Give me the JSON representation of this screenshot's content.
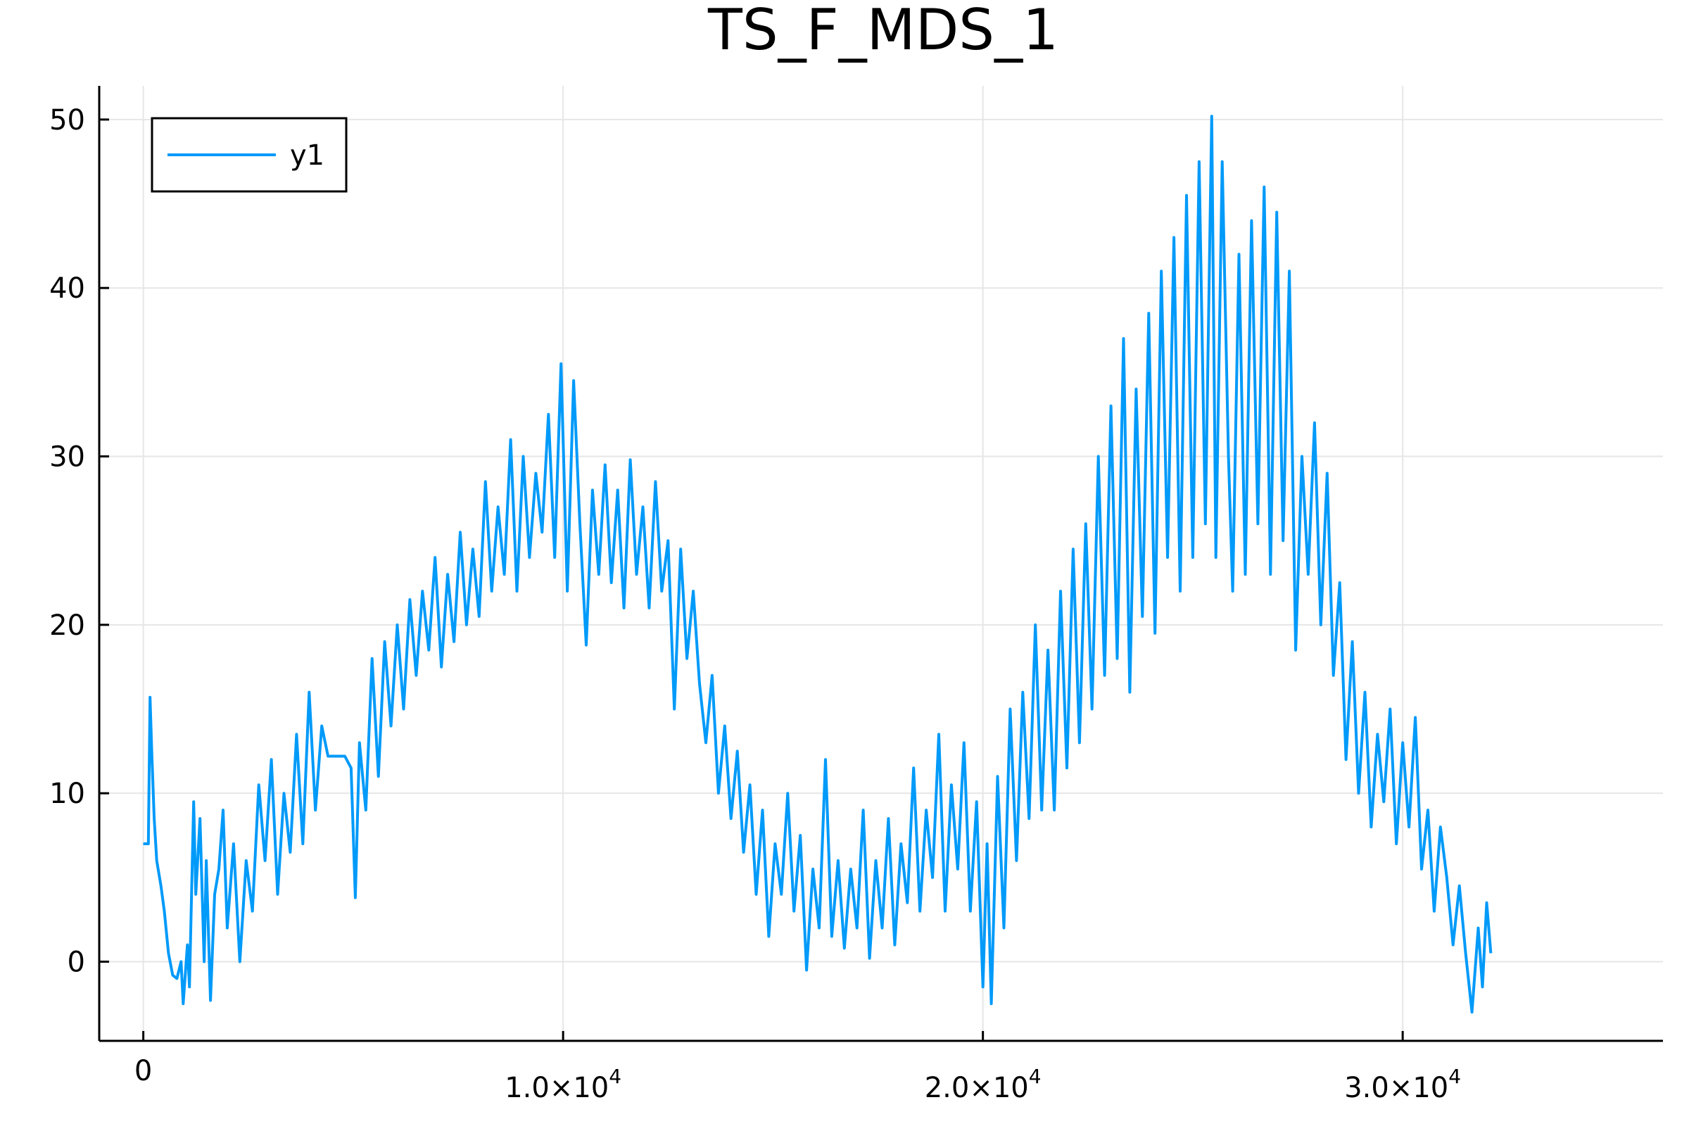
{
  "chart_data": {
    "type": "line",
    "title": "TS_F_MDS_1",
    "xlabel": "",
    "ylabel": "",
    "xlim": [
      -1050,
      36200
    ],
    "ylim": [
      -4.7,
      52
    ],
    "x_ticks": [
      0,
      10000,
      20000,
      30000
    ],
    "x_tick_labels": [
      {
        "mantissa": "0",
        "exp": ""
      },
      {
        "mantissa": "1.0×10",
        "exp": "4"
      },
      {
        "mantissa": "2.0×10",
        "exp": "4"
      },
      {
        "mantissa": "3.0×10",
        "exp": "4"
      }
    ],
    "y_ticks": [
      0,
      10,
      20,
      30,
      40,
      50
    ],
    "y_tick_labels": [
      "0",
      "10",
      "20",
      "30",
      "40",
      "50"
    ],
    "grid": true,
    "legend": {
      "placement": "top-left"
    },
    "colors": {
      "y1": "#009af9"
    },
    "series": [
      {
        "name": "y1",
        "color": "#009af9",
        "points": [
          [
            0,
            7
          ],
          [
            120,
            7
          ],
          [
            160,
            15.7
          ],
          [
            200,
            12.5
          ],
          [
            260,
            8.5
          ],
          [
            320,
            6
          ],
          [
            420,
            4.5
          ],
          [
            500,
            3
          ],
          [
            600,
            0.5
          ],
          [
            700,
            -0.8
          ],
          [
            800,
            -1
          ],
          [
            900,
            0
          ],
          [
            950,
            -2.5
          ],
          [
            1050,
            1
          ],
          [
            1100,
            -1.5
          ],
          [
            1200,
            9.5
          ],
          [
            1250,
            4
          ],
          [
            1350,
            8.5
          ],
          [
            1450,
            0
          ],
          [
            1500,
            6
          ],
          [
            1600,
            -2.3
          ],
          [
            1700,
            4
          ],
          [
            1800,
            5.5
          ],
          [
            1900,
            9
          ],
          [
            2000,
            2
          ],
          [
            2150,
            7
          ],
          [
            2300,
            0
          ],
          [
            2450,
            6
          ],
          [
            2600,
            3
          ],
          [
            2750,
            10.5
          ],
          [
            2900,
            6
          ],
          [
            3050,
            12
          ],
          [
            3200,
            4
          ],
          [
            3350,
            10
          ],
          [
            3500,
            6.5
          ],
          [
            3650,
            13.5
          ],
          [
            3800,
            7
          ],
          [
            3950,
            16
          ],
          [
            4100,
            9
          ],
          [
            4250,
            14
          ],
          [
            4400,
            12.2
          ],
          [
            4800,
            12.2
          ],
          [
            4950,
            11.5
          ],
          [
            5050,
            3.8
          ],
          [
            5150,
            13
          ],
          [
            5300,
            9
          ],
          [
            5450,
            18
          ],
          [
            5600,
            11
          ],
          [
            5750,
            19
          ],
          [
            5900,
            14
          ],
          [
            6050,
            20
          ],
          [
            6200,
            15
          ],
          [
            6350,
            21.5
          ],
          [
            6500,
            17
          ],
          [
            6650,
            22
          ],
          [
            6800,
            18.5
          ],
          [
            6950,
            24
          ],
          [
            7100,
            17.5
          ],
          [
            7250,
            23
          ],
          [
            7400,
            19
          ],
          [
            7550,
            25.5
          ],
          [
            7700,
            20
          ],
          [
            7850,
            24.5
          ],
          [
            8000,
            20.5
          ],
          [
            8150,
            28.5
          ],
          [
            8300,
            22
          ],
          [
            8450,
            27
          ],
          [
            8600,
            23
          ],
          [
            8750,
            31
          ],
          [
            8900,
            22
          ],
          [
            9050,
            30
          ],
          [
            9200,
            24
          ],
          [
            9350,
            29
          ],
          [
            9500,
            25.5
          ],
          [
            9650,
            32.5
          ],
          [
            9800,
            24
          ],
          [
            9950,
            35.5
          ],
          [
            10100,
            22
          ],
          [
            10250,
            34.5
          ],
          [
            10400,
            26
          ],
          [
            10550,
            18.8
          ],
          [
            10700,
            28
          ],
          [
            10850,
            23
          ],
          [
            11000,
            29.5
          ],
          [
            11150,
            22.5
          ],
          [
            11300,
            28
          ],
          [
            11450,
            21
          ],
          [
            11600,
            29.8
          ],
          [
            11750,
            23
          ],
          [
            11900,
            27
          ],
          [
            12050,
            21
          ],
          [
            12200,
            28.5
          ],
          [
            12350,
            22
          ],
          [
            12500,
            25
          ],
          [
            12650,
            15
          ],
          [
            12800,
            24.5
          ],
          [
            12950,
            18
          ],
          [
            13100,
            22
          ],
          [
            13250,
            16.5
          ],
          [
            13400,
            13
          ],
          [
            13550,
            17
          ],
          [
            13700,
            10
          ],
          [
            13850,
            14
          ],
          [
            14000,
            8.5
          ],
          [
            14150,
            12.5
          ],
          [
            14300,
            6.5
          ],
          [
            14450,
            10.5
          ],
          [
            14600,
            4
          ],
          [
            14750,
            9
          ],
          [
            14900,
            1.5
          ],
          [
            15050,
            7
          ],
          [
            15200,
            4
          ],
          [
            15350,
            10
          ],
          [
            15500,
            3
          ],
          [
            15650,
            7.5
          ],
          [
            15800,
            -0.5
          ],
          [
            15950,
            5.5
          ],
          [
            16100,
            2
          ],
          [
            16250,
            12
          ],
          [
            16400,
            1.5
          ],
          [
            16550,
            6
          ],
          [
            16700,
            0.8
          ],
          [
            16850,
            5.5
          ],
          [
            17000,
            2
          ],
          [
            17150,
            9
          ],
          [
            17300,
            0.2
          ],
          [
            17450,
            6
          ],
          [
            17600,
            2
          ],
          [
            17750,
            8.5
          ],
          [
            17900,
            1
          ],
          [
            18050,
            7
          ],
          [
            18200,
            3.5
          ],
          [
            18350,
            11.5
          ],
          [
            18500,
            3
          ],
          [
            18650,
            9
          ],
          [
            18800,
            5
          ],
          [
            18950,
            13.5
          ],
          [
            19100,
            3
          ],
          [
            19250,
            10.5
          ],
          [
            19400,
            5.5
          ],
          [
            19550,
            13
          ],
          [
            19700,
            3
          ],
          [
            19850,
            9.5
          ],
          [
            20000,
            -1.5
          ],
          [
            20100,
            7
          ],
          [
            20200,
            -2.5
          ],
          [
            20350,
            11
          ],
          [
            20500,
            2
          ],
          [
            20650,
            15
          ],
          [
            20800,
            6
          ],
          [
            20950,
            16
          ],
          [
            21100,
            8.5
          ],
          [
            21250,
            20
          ],
          [
            21400,
            9
          ],
          [
            21550,
            18.5
          ],
          [
            21700,
            9
          ],
          [
            21850,
            22
          ],
          [
            22000,
            11.5
          ],
          [
            22150,
            24.5
          ],
          [
            22300,
            13
          ],
          [
            22450,
            26
          ],
          [
            22600,
            15
          ],
          [
            22750,
            30
          ],
          [
            22900,
            17
          ],
          [
            23050,
            33
          ],
          [
            23200,
            18
          ],
          [
            23350,
            37
          ],
          [
            23500,
            16
          ],
          [
            23650,
            34
          ],
          [
            23800,
            20.5
          ],
          [
            23950,
            38.5
          ],
          [
            24100,
            19.5
          ],
          [
            24250,
            41
          ],
          [
            24400,
            24
          ],
          [
            24550,
            43
          ],
          [
            24700,
            22
          ],
          [
            24850,
            45.5
          ],
          [
            25000,
            24
          ],
          [
            25150,
            47.5
          ],
          [
            25300,
            26
          ],
          [
            25450,
            50.2
          ],
          [
            25550,
            24
          ],
          [
            25700,
            47.5
          ],
          [
            25850,
            30
          ],
          [
            25950,
            22
          ],
          [
            26100,
            42
          ],
          [
            26250,
            23
          ],
          [
            26400,
            44
          ],
          [
            26550,
            26
          ],
          [
            26700,
            46
          ],
          [
            26850,
            23
          ],
          [
            27000,
            44.5
          ],
          [
            27150,
            25
          ],
          [
            27300,
            41
          ],
          [
            27450,
            18.5
          ],
          [
            27600,
            30
          ],
          [
            27750,
            23
          ],
          [
            27900,
            32
          ],
          [
            28050,
            20
          ],
          [
            28200,
            29
          ],
          [
            28350,
            17
          ],
          [
            28500,
            22.5
          ],
          [
            28650,
            12
          ],
          [
            28800,
            19
          ],
          [
            28950,
            10
          ],
          [
            29100,
            16
          ],
          [
            29250,
            8
          ],
          [
            29400,
            13.5
          ],
          [
            29550,
            9.5
          ],
          [
            29700,
            15
          ],
          [
            29850,
            7
          ],
          [
            30000,
            13
          ],
          [
            30150,
            8
          ],
          [
            30300,
            14.5
          ],
          [
            30450,
            5.5
          ],
          [
            30600,
            9
          ],
          [
            30750,
            3
          ],
          [
            30900,
            8
          ],
          [
            31050,
            5
          ],
          [
            31200,
            1
          ],
          [
            31350,
            4.5
          ],
          [
            31500,
            0.5
          ],
          [
            31650,
            -3
          ],
          [
            31800,
            2
          ],
          [
            31900,
            -1.5
          ],
          [
            32000,
            3.5
          ],
          [
            32100,
            0.5
          ]
        ]
      }
    ]
  }
}
